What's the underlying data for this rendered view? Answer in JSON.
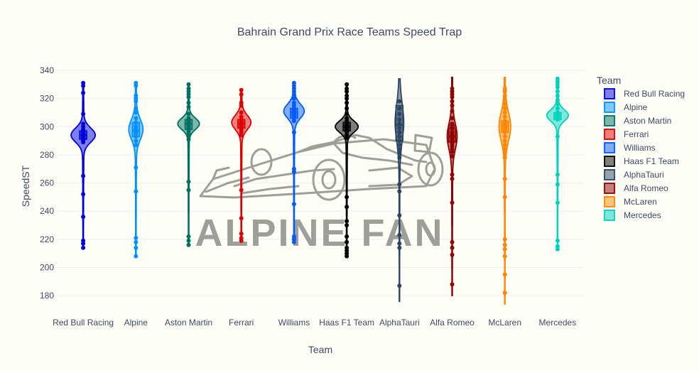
{
  "chart_data": {
    "type": "violin",
    "title": "Bahrain Grand Prix Race Teams Speed Trap",
    "xlabel": "Team",
    "ylabel": "SpeedST",
    "ylim": [
      173,
      342
    ],
    "yticks": [
      180,
      200,
      220,
      240,
      260,
      280,
      300,
      320,
      340
    ],
    "grid": true,
    "legend": {
      "title": "Team",
      "placement": "right"
    },
    "watermark": "ALPINE FAN",
    "categories": [
      "Red Bull Racing",
      "Alpine",
      "Aston Martin",
      "Ferrari",
      "Williams",
      "Haas F1 Team",
      "AlphaTauri",
      "Alfa Romeo",
      "McLaren",
      "Mercedes"
    ],
    "series": [
      {
        "name": "Red Bull Racing",
        "color": "#0000dd",
        "min": 214,
        "max": 331,
        "q1": 291,
        "median": 294,
        "q3": 297,
        "peak": 294,
        "width": 0.9,
        "spread": 5,
        "points": [
          331,
          329,
          324,
          309,
          302,
          300,
          298,
          296,
          295,
          294,
          293,
          292,
          291,
          290,
          289,
          265,
          252,
          236,
          219,
          217,
          214
        ]
      },
      {
        "name": "Alpine",
        "color": "#0090ff",
        "min": 208,
        "max": 331,
        "q1": 293,
        "median": 297,
        "q3": 303,
        "peak": 298,
        "width": 0.5,
        "spread": 7,
        "points": [
          331,
          329,
          322,
          320,
          318,
          313,
          310,
          306,
          303,
          300,
          298,
          296,
          293,
          290,
          287,
          271,
          254,
          221,
          218,
          214,
          208
        ]
      },
      {
        "name": "Aston Martin",
        "color": "#006f62",
        "min": 215,
        "max": 330,
        "q1": 298,
        "median": 302,
        "q3": 305,
        "peak": 302,
        "width": 0.8,
        "spread": 4,
        "points": [
          330,
          327,
          325,
          323,
          321,
          317,
          314,
          309,
          306,
          304,
          303,
          302,
          301,
          299,
          297,
          295,
          293,
          291,
          261,
          255,
          222,
          219,
          216
        ]
      },
      {
        "name": "Ferrari",
        "color": "#dc0000",
        "min": 218,
        "max": 326,
        "q1": 299,
        "median": 302,
        "q3": 305,
        "peak": 303,
        "width": 0.7,
        "spread": 5,
        "points": [
          326,
          323,
          317,
          315,
          310,
          307,
          305,
          304,
          303,
          302,
          301,
          300,
          298,
          296,
          294,
          255,
          235,
          224,
          221,
          219
        ]
      },
      {
        "name": "Williams",
        "color": "#005aff",
        "min": 217,
        "max": 331,
        "q1": 306,
        "median": 310,
        "q3": 313,
        "peak": 311,
        "width": 0.75,
        "spread": 5,
        "points": [
          331,
          329,
          327,
          325,
          323,
          320,
          317,
          315,
          313,
          312,
          311,
          310,
          309,
          308,
          306,
          304,
          296,
          270,
          268,
          245,
          222,
          220,
          218
        ]
      },
      {
        "name": "Haas F1 Team",
        "color": "#000000",
        "min": 207,
        "max": 330,
        "q1": 297,
        "median": 300,
        "q3": 303,
        "peak": 300,
        "width": 0.85,
        "spread": 4,
        "points": [
          330,
          327,
          325,
          322,
          320,
          317,
          313,
          309,
          306,
          304,
          302,
          301,
          300,
          299,
          298,
          296,
          294,
          292,
          250,
          243,
          233,
          230,
          222,
          218,
          214,
          212,
          210,
          208
        ]
      },
      {
        "name": "AlphaTauri",
        "color": "#2b4562",
        "min": 176,
        "max": 334,
        "q1": 290,
        "median": 301,
        "q3": 315,
        "peak": 303,
        "width": 0.28,
        "spread": 13,
        "points": [
          318,
          313,
          309,
          305,
          302,
          299,
          296,
          293,
          290,
          287,
          284,
          281,
          278,
          259,
          254,
          237,
          223,
          217,
          214,
          187
        ]
      },
      {
        "name": "Alfa Romeo",
        "color": "#900000",
        "min": 180,
        "max": 335,
        "q1": 289,
        "median": 293,
        "q3": 301,
        "peak": 293,
        "width": 0.33,
        "spread": 9,
        "points": [
          327,
          325,
          323,
          321,
          318,
          315,
          311,
          306,
          302,
          299,
          296,
          294,
          292,
          290,
          288,
          286,
          284,
          282,
          279,
          266,
          263,
          246,
          218,
          214,
          209,
          188
        ]
      },
      {
        "name": "McLaren",
        "color": "#ff8700",
        "min": 174,
        "max": 335,
        "q1": 296,
        "median": 300,
        "q3": 304,
        "peak": 300,
        "width": 0.4,
        "spread": 10,
        "points": [
          327,
          325,
          322,
          319,
          316,
          313,
          310,
          307,
          304,
          302,
          300,
          298,
          296,
          293,
          290,
          287,
          284,
          281,
          278,
          263,
          250,
          220,
          216,
          213,
          208,
          195,
          182
        ]
      },
      {
        "name": "Mercedes",
        "color": "#00d2be",
        "min": 212,
        "max": 335,
        "q1": 305,
        "median": 308,
        "q3": 310,
        "peak": 308,
        "width": 0.8,
        "spread": 4,
        "points": [
          334,
          332,
          330,
          328,
          325,
          322,
          319,
          316,
          313,
          310,
          309,
          308,
          307,
          306,
          305,
          293,
          266,
          259,
          246,
          219,
          215,
          213
        ]
      }
    ]
  }
}
